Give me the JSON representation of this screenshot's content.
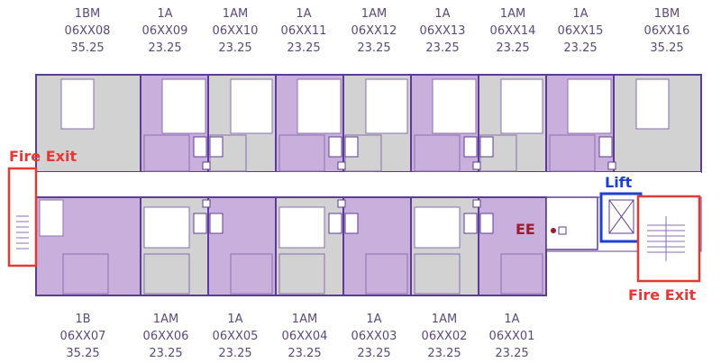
{
  "colors": {
    "purple_room": "#c9b0dc",
    "grey_room": "#d2d2d2",
    "wall": "#5e3c96",
    "fire_red": "#e53935",
    "lift_blue": "#1e3fd0",
    "ee_red": "#9b1b30",
    "label_text": "#5a4a7a"
  },
  "labels": {
    "fire_exit_left": "Fire Exit",
    "fire_exit_right": "Fire Exit",
    "lift": "Lift",
    "ee": "EE"
  },
  "top_units": [
    {
      "type": "1BM",
      "code": "06XX08",
      "area": "35.25"
    },
    {
      "type": "1A",
      "code": "06XX09",
      "area": "23.25"
    },
    {
      "type": "1AM",
      "code": "06XX10",
      "area": "23.25"
    },
    {
      "type": "1A",
      "code": "06XX11",
      "area": "23.25"
    },
    {
      "type": "1AM",
      "code": "06XX12",
      "area": "23.25"
    },
    {
      "type": "1A",
      "code": "06XX13",
      "area": "23.25"
    },
    {
      "type": "1AM",
      "code": "06XX14",
      "area": "23.25"
    },
    {
      "type": "1A",
      "code": "06XX15",
      "area": "23.25"
    },
    {
      "type": "1BM",
      "code": "06XX16",
      "area": "35.25"
    }
  ],
  "bottom_units": [
    {
      "type": "1B",
      "code": "06XX07",
      "area": "35.25"
    },
    {
      "type": "1AM",
      "code": "06XX06",
      "area": "23.25"
    },
    {
      "type": "1A",
      "code": "06XX05",
      "area": "23.25"
    },
    {
      "type": "1AM",
      "code": "06XX04",
      "area": "23.25"
    },
    {
      "type": "1A",
      "code": "06XX03",
      "area": "23.25"
    },
    {
      "type": "1AM",
      "code": "06XX02",
      "area": "23.25"
    },
    {
      "type": "1A",
      "code": "06XX01",
      "area": "23.25"
    }
  ]
}
